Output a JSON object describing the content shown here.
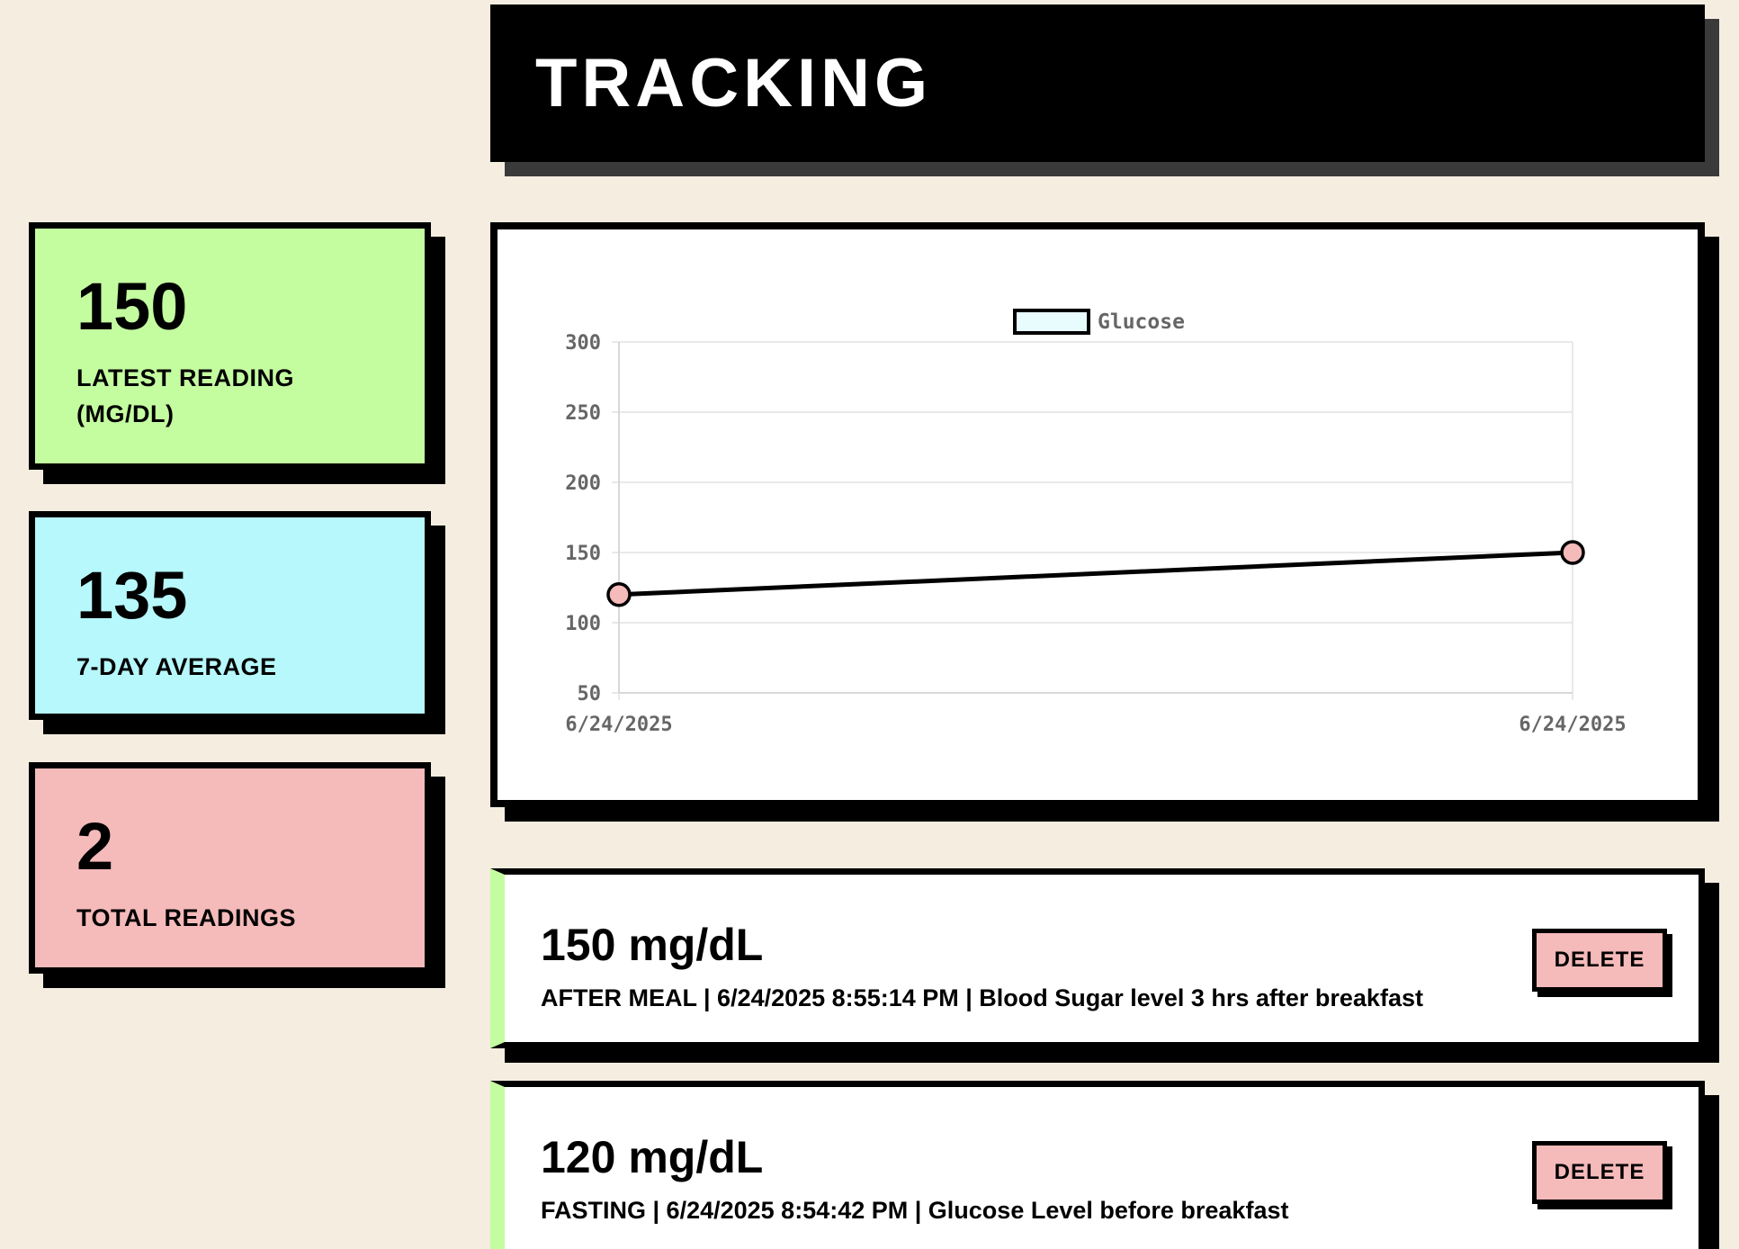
{
  "header": {
    "title": "TRACKING"
  },
  "stats": {
    "latest": {
      "value": "150",
      "label": "LATEST READING (MG/DL)"
    },
    "average": {
      "value": "135",
      "label": "7-DAY AVERAGE"
    },
    "total": {
      "value": "2",
      "label": "TOTAL READINGS"
    }
  },
  "colors": {
    "latest_card": "#c4fca0",
    "average_card": "#b6f8fb",
    "total_card": "#f5baba",
    "point_fill": "#f5baba",
    "legend_fill": "#e8fbfd",
    "background": "#f5ede0"
  },
  "chart_data": {
    "type": "line",
    "legend": {
      "position": "top",
      "entries": [
        "Glucose"
      ]
    },
    "x": [
      "6/24/2025",
      "6/24/2025"
    ],
    "series": [
      {
        "name": "Glucose",
        "values": [
          120,
          150
        ]
      }
    ],
    "ylim": [
      50,
      300
    ],
    "yticks": [
      50,
      100,
      150,
      200,
      250,
      300
    ],
    "grid": true,
    "xlabel": "",
    "ylabel": ""
  },
  "readings": [
    {
      "amount": "150 mg/dL",
      "meta": "AFTER MEAL | 6/24/2025 8:55:14 PM | Blood Sugar level 3 hrs after breakfast",
      "delete_label": "DELETE"
    },
    {
      "amount": "120 mg/dL",
      "meta": "FASTING | 6/24/2025 8:54:42 PM | Glucose Level before breakfast",
      "delete_label": "DELETE"
    }
  ]
}
